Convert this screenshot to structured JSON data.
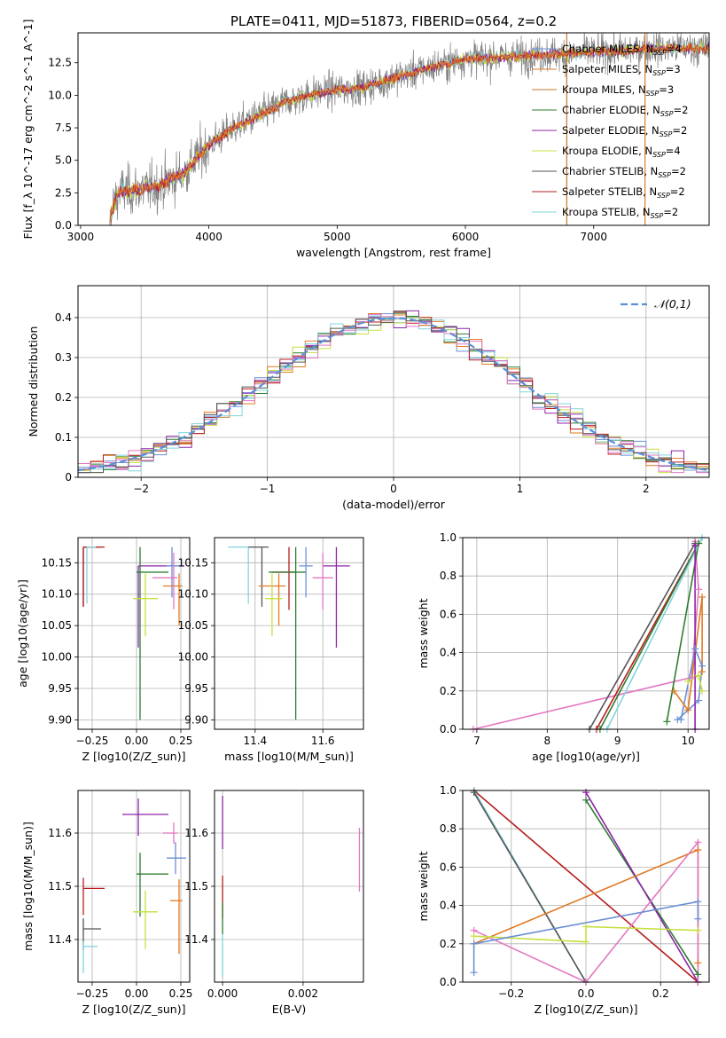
{
  "figure": {
    "title": "PLATE=0411, MJD=51873, FIBERID=0564, z=0.2"
  },
  "series_colors": {
    "Chabrier MILES": "#6b8fd6",
    "Salpeter MILES": "#e07b26",
    "Kroupa MILES": "#c47a2a",
    "Chabrier ELODIE": "#2e7d32",
    "Salpeter ELODIE": "#8e24aa",
    "Kroupa ELODIE": "#c6e040",
    "Chabrier STELIB": "#555555",
    "Salpeter STELIB": "#b71c1c",
    "Kroupa STELIB": "#80d4dc",
    "pink": "#e377c2",
    "normal": "#5b8fd6"
  },
  "chart_data": [
    {
      "id": "spectrum",
      "type": "line",
      "title": "PLATE=0411, MJD=51873, FIBERID=0564, z=0.2",
      "xlabel": "wavelength [Angstrom, rest frame]",
      "ylabel": "Flux [f_λ 10^-17 erg cm^-2 s^-1 A^-1]",
      "xlim": [
        2980,
        7900
      ],
      "ylim": [
        0,
        14.8
      ],
      "xticks": [
        3000,
        4000,
        5000,
        6000,
        7000
      ],
      "yticks": [
        0.0,
        2.5,
        5.0,
        7.5,
        10.0,
        12.5
      ],
      "legend_position": "top-right",
      "legend": [
        "Chabrier MILES, N_SSP=4",
        "Salpeter MILES, N_SSP=3",
        "Kroupa MILES, N_SSP=3",
        "Chabrier ELODIE, N_SSP=2",
        "Salpeter ELODIE, N_SSP=2",
        "Kroupa ELODIE, N_SSP=4",
        "Chabrier STELIB, N_SSP=2",
        "Salpeter STELIB, N_SSP=2",
        "Kroupa STELIB, N_SSP=2"
      ],
      "continuum": {
        "wavelength": [
          3200,
          3300,
          3500,
          3600,
          3800,
          4000,
          4200,
          4400,
          4600,
          4800,
          5000,
          5200,
          5400,
          5600,
          5800,
          6000,
          6200,
          6400,
          6600,
          6800,
          7000,
          7200,
          7400
        ],
        "flux": [
          0,
          2.6,
          2.8,
          3.0,
          4.0,
          6.2,
          7.5,
          8.5,
          9.5,
          10.1,
          10.4,
          10.6,
          11.2,
          11.8,
          12.3,
          12.8,
          12.9,
          13.0,
          13.1,
          13.2,
          13.3,
          13.4,
          13.6
        ]
      },
      "vertical_lines": [
        {
          "x": 6790,
          "color": "Kroupa MILES"
        },
        {
          "x": 7400,
          "color": "Salpeter MILES"
        }
      ]
    },
    {
      "id": "residual_histogram",
      "type": "line",
      "xlabel": "(data-model)/error",
      "ylabel": "Normed distribution",
      "xlim": [
        -2.5,
        2.5
      ],
      "ylim": [
        0,
        0.48
      ],
      "xticks": [
        -2,
        -1,
        0,
        1,
        2
      ],
      "yticks": [
        0.0,
        0.1,
        0.2,
        0.3,
        0.4
      ],
      "grid": true,
      "legend_position": "top-right",
      "legend": [
        "N(0,1)"
      ],
      "bin_width": 0.1
    },
    {
      "id": "age_vs_Z",
      "type": "scatter",
      "xlabel": "Z [log10(Z/Z_sun)]",
      "ylabel": "age [log10(age/yr)]",
      "xlim": [
        -0.33,
        0.3
      ],
      "ylim": [
        9.885,
        10.19
      ],
      "xticks": [
        -0.25,
        0.0,
        0.25
      ],
      "xticklabels": [
        "−0.25",
        "0.00",
        "0.25"
      ],
      "yticks": [
        9.9,
        9.95,
        10.0,
        10.05,
        10.1,
        10.15
      ],
      "grid": true,
      "points": [
        {
          "series": "Chabrier STELIB",
          "x": -0.3,
          "y": 10.175,
          "xerr": [
            0,
            0.1
          ],
          "yerr": [
            0.095,
            0
          ]
        },
        {
          "series": "Salpeter STELIB",
          "x": -0.3,
          "y": 10.175,
          "xerr": [
            0,
            0.12
          ],
          "yerr": [
            0.095,
            0
          ]
        },
        {
          "series": "Kroupa STELIB",
          "x": -0.28,
          "y": 10.175,
          "xerr": [
            0,
            0.05
          ],
          "yerr": [
            0.09,
            0
          ]
        },
        {
          "series": "Salpeter ELODIE",
          "x": 0.01,
          "y": 10.145,
          "xerr": [
            0,
            0.26
          ],
          "yerr": [
            0.13,
            0
          ]
        },
        {
          "series": "Chabrier MILES",
          "x": 0.2,
          "y": 10.145,
          "xerr": [
            0.03,
            0.05
          ],
          "yerr": [
            0.05,
            0.03
          ]
        },
        {
          "series": "Chabrier ELODIE",
          "x": 0.02,
          "y": 10.135,
          "xerr": [
            0.02,
            0.16
          ],
          "yerr": [
            0.235,
            0.04
          ]
        },
        {
          "series": "Salpeter MILES",
          "x": 0.24,
          "y": 10.113,
          "xerr": [
            0.09,
            0.02
          ],
          "yerr": [
            0.063,
            0.02
          ]
        },
        {
          "series": "pink",
          "x": 0.21,
          "y": 10.126,
          "xerr": [
            0.12,
            0.02
          ],
          "yerr": [
            0.05,
            0.04
          ]
        },
        {
          "series": "Kroupa ELODIE",
          "x": 0.05,
          "y": 10.093,
          "xerr": [
            0.07,
            0.07
          ],
          "yerr": [
            0.06,
            0.04
          ]
        }
      ]
    },
    {
      "id": "age_vs_mass",
      "type": "scatter",
      "xlabel": "mass [log10(M/M_sun)]",
      "ylabel": "",
      "xlim": [
        11.28,
        11.72
      ],
      "ylim": [
        9.885,
        10.19
      ],
      "xticks": [
        11.4,
        11.6
      ],
      "yticks": [
        9.9,
        9.95,
        10.0,
        10.05,
        10.1,
        10.15
      ],
      "grid": true,
      "points": [
        {
          "series": "Kroupa STELIB",
          "x": 11.38,
          "y": 10.175,
          "xerr": [
            0.06,
            0.03
          ],
          "yerr": [
            0.09,
            0
          ]
        },
        {
          "series": "Chabrier STELIB",
          "x": 11.42,
          "y": 10.175,
          "xerr": [
            0.04,
            0.02
          ],
          "yerr": [
            0.095,
            0
          ]
        },
        {
          "series": "Salpeter STELIB",
          "x": 11.5,
          "y": 10.135,
          "xerr": [
            0.05,
            0.02
          ],
          "yerr": [
            0.06,
            0.04
          ]
        },
        {
          "series": "Chabrier ELODIE",
          "x": 11.52,
          "y": 10.135,
          "xerr": [
            0.08,
            0.03
          ],
          "yerr": [
            0.235,
            0.04
          ]
        },
        {
          "series": "Salpeter ELODIE",
          "x": 11.64,
          "y": 10.145,
          "xerr": [
            0.04,
            0.04
          ],
          "yerr": [
            0.13,
            0.03
          ]
        },
        {
          "series": "Chabrier MILES",
          "x": 11.55,
          "y": 10.145,
          "xerr": [
            0.02,
            0.02
          ],
          "yerr": [
            0.05,
            0.03
          ]
        },
        {
          "series": "Salpeter MILES",
          "x": 11.47,
          "y": 10.113,
          "xerr": [
            0.06,
            0.02
          ],
          "yerr": [
            0.063,
            0.02
          ]
        },
        {
          "series": "pink",
          "x": 11.6,
          "y": 10.126,
          "xerr": [
            0.03,
            0.03
          ],
          "yerr": [
            0.05,
            0.04
          ]
        },
        {
          "series": "Kroupa ELODIE",
          "x": 11.45,
          "y": 10.093,
          "xerr": [
            0.02,
            0.03
          ],
          "yerr": [
            0.06,
            0.04
          ]
        }
      ]
    },
    {
      "id": "mass_weight_vs_age",
      "type": "line",
      "xlabel": "age [log10(age/yr)]",
      "ylabel": "mass weight",
      "xlim": [
        6.8,
        10.3
      ],
      "ylim": [
        0.0,
        1.0
      ],
      "xticks": [
        7,
        8,
        9,
        10
      ],
      "yticks": [
        0.0,
        0.2,
        0.4,
        0.6,
        0.8,
        1.0
      ],
      "grid": true,
      "series": [
        {
          "name": "pink",
          "x": [
            6.95,
            10.05,
            10.15,
            10.1
          ],
          "y": [
            0.0,
            0.27,
            0.73,
            0.98
          ]
        },
        {
          "name": "Salpeter STELIB",
          "x": [
            8.7,
            10.15
          ],
          "y": [
            0.0,
            0.97
          ]
        },
        {
          "name": "Chabrier STELIB",
          "x": [
            8.6,
            10.1
          ],
          "y": [
            0.0,
            0.97
          ]
        },
        {
          "name": "Chabrier ELODIE",
          "x": [
            8.75,
            10.15,
            9.7
          ],
          "y": [
            0.0,
            0.97,
            0.04
          ]
        },
        {
          "name": "Kroupa STELIB",
          "x": [
            8.85,
            10.2
          ],
          "y": [
            0.0,
            1.0
          ]
        },
        {
          "name": "Chabrier MILES",
          "x": [
            9.9,
            10.1,
            10.2,
            10.15,
            9.85
          ],
          "y": [
            0.05,
            0.42,
            0.33,
            0.15,
            0.05
          ]
        },
        {
          "name": "Salpeter MILES",
          "x": [
            9.8,
            10.0,
            10.2,
            10.2
          ],
          "y": [
            0.2,
            0.1,
            0.69,
            0.3
          ]
        },
        {
          "name": "Kroupa ELODIE",
          "x": [
            10.0,
            10.15,
            10.2
          ],
          "y": [
            0.25,
            0.28,
            0.2
          ]
        },
        {
          "name": "Salpeter ELODIE",
          "x": [
            10.1,
            10.1
          ],
          "y": [
            0.0,
            0.96
          ]
        }
      ]
    },
    {
      "id": "mass_vs_Z",
      "type": "scatter",
      "xlabel": "Z [log10(Z/Z_sun)]",
      "ylabel": "mass [log10(M/M_sun)]",
      "xlim": [
        -0.33,
        0.3
      ],
      "ylim": [
        11.32,
        11.68
      ],
      "xticks": [
        -0.25,
        0.0,
        0.25
      ],
      "xticklabels": [
        "−0.25",
        "0.00",
        "0.25"
      ],
      "yticks": [
        11.4,
        11.5,
        11.6
      ],
      "grid": true,
      "points": [
        {
          "series": "Salpeter ELODIE",
          "x": 0.01,
          "y": 11.635,
          "xerr": [
            0.09,
            0.17
          ],
          "yerr": [
            0.04,
            0.03
          ]
        },
        {
          "series": "pink",
          "x": 0.21,
          "y": 11.6,
          "xerr": [
            0.06,
            0.02
          ],
          "yerr": [
            0.02,
            0.02
          ]
        },
        {
          "series": "Chabrier MILES",
          "x": 0.22,
          "y": 11.553,
          "xerr": [
            0.05,
            0.06
          ],
          "yerr": [
            0.03,
            0.03
          ]
        },
        {
          "series": "Chabrier ELODIE",
          "x": 0.02,
          "y": 11.523,
          "xerr": [
            0.02,
            0.16
          ],
          "yerr": [
            0.08,
            0.04
          ]
        },
        {
          "series": "Salpeter STELIB",
          "x": -0.3,
          "y": 11.496,
          "xerr": [
            0,
            0.12
          ],
          "yerr": [
            0.05,
            0.02
          ]
        },
        {
          "series": "Salpeter MILES",
          "x": 0.24,
          "y": 11.473,
          "xerr": [
            0.05,
            0.02
          ],
          "yerr": [
            0.1,
            0.04
          ]
        },
        {
          "series": "Kroupa ELODIE",
          "x": 0.05,
          "y": 11.452,
          "xerr": [
            0.07,
            0.07
          ],
          "yerr": [
            0.07,
            0.04
          ]
        },
        {
          "series": "Chabrier STELIB",
          "x": -0.3,
          "y": 11.42,
          "xerr": [
            0,
            0.1
          ],
          "yerr": [
            0.04,
            0.02
          ]
        },
        {
          "series": "Kroupa STELIB",
          "x": -0.3,
          "y": 11.387,
          "xerr": [
            0,
            0.08
          ],
          "yerr": [
            0.05,
            0.01
          ]
        }
      ]
    },
    {
      "id": "mass_vs_ebv",
      "type": "scatter",
      "xlabel": "E(B-V)",
      "ylabel": "",
      "xlim": [
        -0.0002,
        0.0035
      ],
      "ylim": [
        11.32,
        11.68
      ],
      "xticks": [
        0.0,
        0.002
      ],
      "xticklabels": [
        "0.000",
        "0.002"
      ],
      "yticks": [
        11.4,
        11.5,
        11.6
      ],
      "grid": true,
      "points": [
        {
          "series": "Salpeter ELODIE",
          "x": 0.0,
          "y": 11.62,
          "xerr": [
            0,
            0
          ],
          "yerr": [
            0.05,
            0.05
          ]
        },
        {
          "series": "pink",
          "x": 0.0034,
          "y": 11.55,
          "xerr": [
            0,
            0
          ],
          "yerr": [
            0.06,
            0.06
          ]
        },
        {
          "series": "Salpeter STELIB",
          "x": 0.0,
          "y": 11.48,
          "xerr": [
            0,
            0
          ],
          "yerr": [
            0.04,
            0.04
          ]
        },
        {
          "series": "Chabrier ELODIE",
          "x": 0.0,
          "y": 11.44,
          "xerr": [
            0,
            0
          ],
          "yerr": [
            0.03,
            0.03
          ]
        },
        {
          "series": "Kroupa STELIB",
          "x": 0.0,
          "y": 11.37,
          "xerr": [
            0,
            0
          ],
          "yerr": [
            0.04,
            0.04
          ]
        }
      ]
    },
    {
      "id": "mass_weight_vs_Z",
      "type": "line",
      "xlabel": "Z [log10(Z/Z_sun)]",
      "ylabel": "mass weight",
      "xlim": [
        -0.33,
        0.33
      ],
      "ylim": [
        0.0,
        1.0
      ],
      "xticks": [
        -0.2,
        0.0,
        0.2
      ],
      "xticklabels": [
        "−0.2",
        "0.0",
        "0.2"
      ],
      "yticks": [
        0.0,
        0.2,
        0.4,
        0.6,
        0.8,
        1.0
      ],
      "grid": true,
      "series": [
        {
          "name": "Salpeter STELIB",
          "x": [
            -0.3,
            0.3
          ],
          "y": [
            1.0,
            0.0
          ]
        },
        {
          "name": "Kroupa STELIB",
          "x": [
            -0.3,
            0.0
          ],
          "y": [
            1.0,
            0.0
          ]
        },
        {
          "name": "Chabrier STELIB",
          "x": [
            -0.3,
            0.0
          ],
          "y": [
            0.99,
            0.0
          ]
        },
        {
          "name": "Chabrier ELODIE",
          "x": [
            0.0,
            0.3
          ],
          "y": [
            0.95,
            0.04
          ]
        },
        {
          "name": "Salpeter ELODIE",
          "x": [
            0.0,
            0.3
          ],
          "y": [
            0.99,
            0.0
          ]
        },
        {
          "name": "Salpeter MILES",
          "x": [
            -0.3,
            0.3,
            0.3
          ],
          "y": [
            0.2,
            0.69,
            0.1
          ]
        },
        {
          "name": "pink",
          "x": [
            -0.3,
            0.0,
            0.3,
            0.3
          ],
          "y": [
            0.27,
            0.0,
            0.73,
            0.0
          ]
        },
        {
          "name": "Kroupa ELODIE",
          "x": [
            -0.3,
            0.0,
            0.0,
            0.3
          ],
          "y": [
            0.24,
            0.21,
            0.29,
            0.27
          ]
        },
        {
          "name": "Chabrier MILES",
          "x": [
            -0.3,
            -0.3,
            0.3,
            0.3
          ],
          "y": [
            0.05,
            0.2,
            0.42,
            0.33
          ]
        }
      ]
    }
  ]
}
